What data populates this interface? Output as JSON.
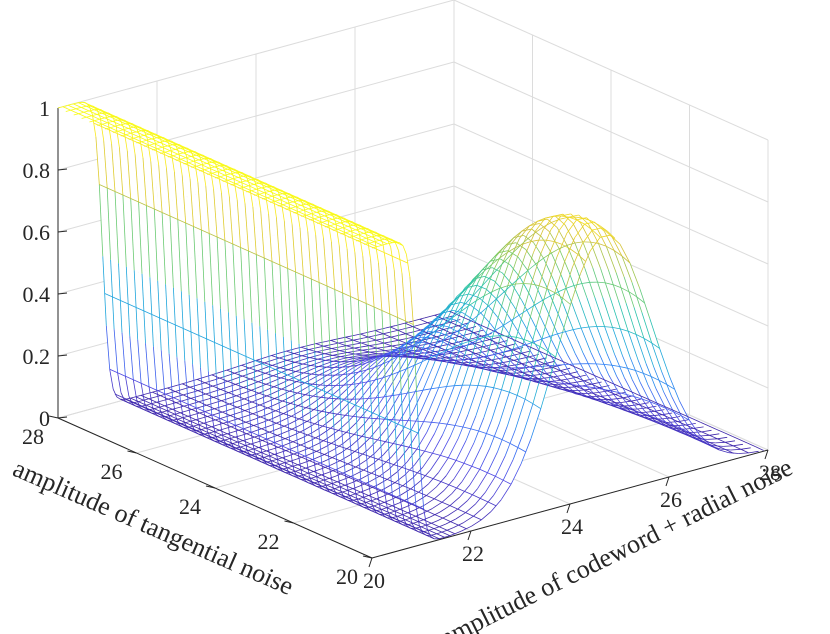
{
  "chart_data": {
    "type": "3d-mesh",
    "title": "",
    "xlabel": "amplitude of codeword + radial noise",
    "ylabel": "amplitude of tangential noise",
    "zlabel": "",
    "xlim": [
      20,
      28
    ],
    "ylim": [
      20,
      28
    ],
    "zlim": [
      0,
      1
    ],
    "x_ticks": [
      "20",
      "22",
      "24",
      "26",
      "28"
    ],
    "y_ticks": [
      "20",
      "22",
      "24",
      "26",
      "28"
    ],
    "z_ticks": [
      "0",
      "0.2",
      "0.4",
      "0.6",
      "0.8",
      "1"
    ],
    "grid": true,
    "colormap": [
      "#3e26a8",
      "#4e49e6",
      "#2f7ef6",
      "#1fa8db",
      "#2bc5a8",
      "#7ccb65",
      "#d1c03c",
      "#f9e21c",
      "#f9fb15"
    ],
    "surfaces": [
      {
        "shape": "step",
        "edge_x": 20.9,
        "edge_width": 0.28,
        "value_below": 1,
        "value_above": 0
      },
      {
        "shape": "ridge",
        "peak_x": 24.7,
        "peak_y": 20.6,
        "peak_value": 0.86,
        "spread_x": 0.95,
        "spread_y": 2.6
      }
    ]
  }
}
